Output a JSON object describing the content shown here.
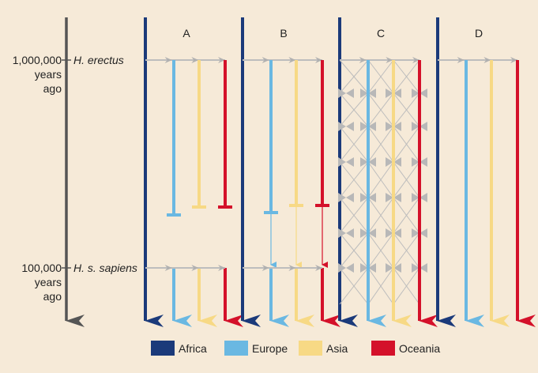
{
  "time_axis": {
    "marks": [
      {
        "value": "1,000,000",
        "line2": "years",
        "line3": "ago",
        "species": "H. erectus"
      },
      {
        "value": "100,000",
        "line2": "years",
        "line3": "ago",
        "species": "H. s. sapiens"
      }
    ]
  },
  "panels": [
    {
      "label": "A",
      "model": "terminate"
    },
    {
      "label": "B",
      "model": "faint"
    },
    {
      "label": "C",
      "model": "network"
    },
    {
      "label": "D",
      "model": "continuous"
    }
  ],
  "legend": [
    {
      "label": "Africa",
      "color": "#1b3a7a"
    },
    {
      "label": "Europe",
      "color": "#6ab8e2"
    },
    {
      "label": "Asia",
      "color": "#f7d985"
    },
    {
      "label": "Oceania",
      "color": "#d4112a"
    }
  ],
  "colors": {
    "background": "#f6ead8",
    "axis": "#555555",
    "gene_flow": "#bdbdbd"
  }
}
